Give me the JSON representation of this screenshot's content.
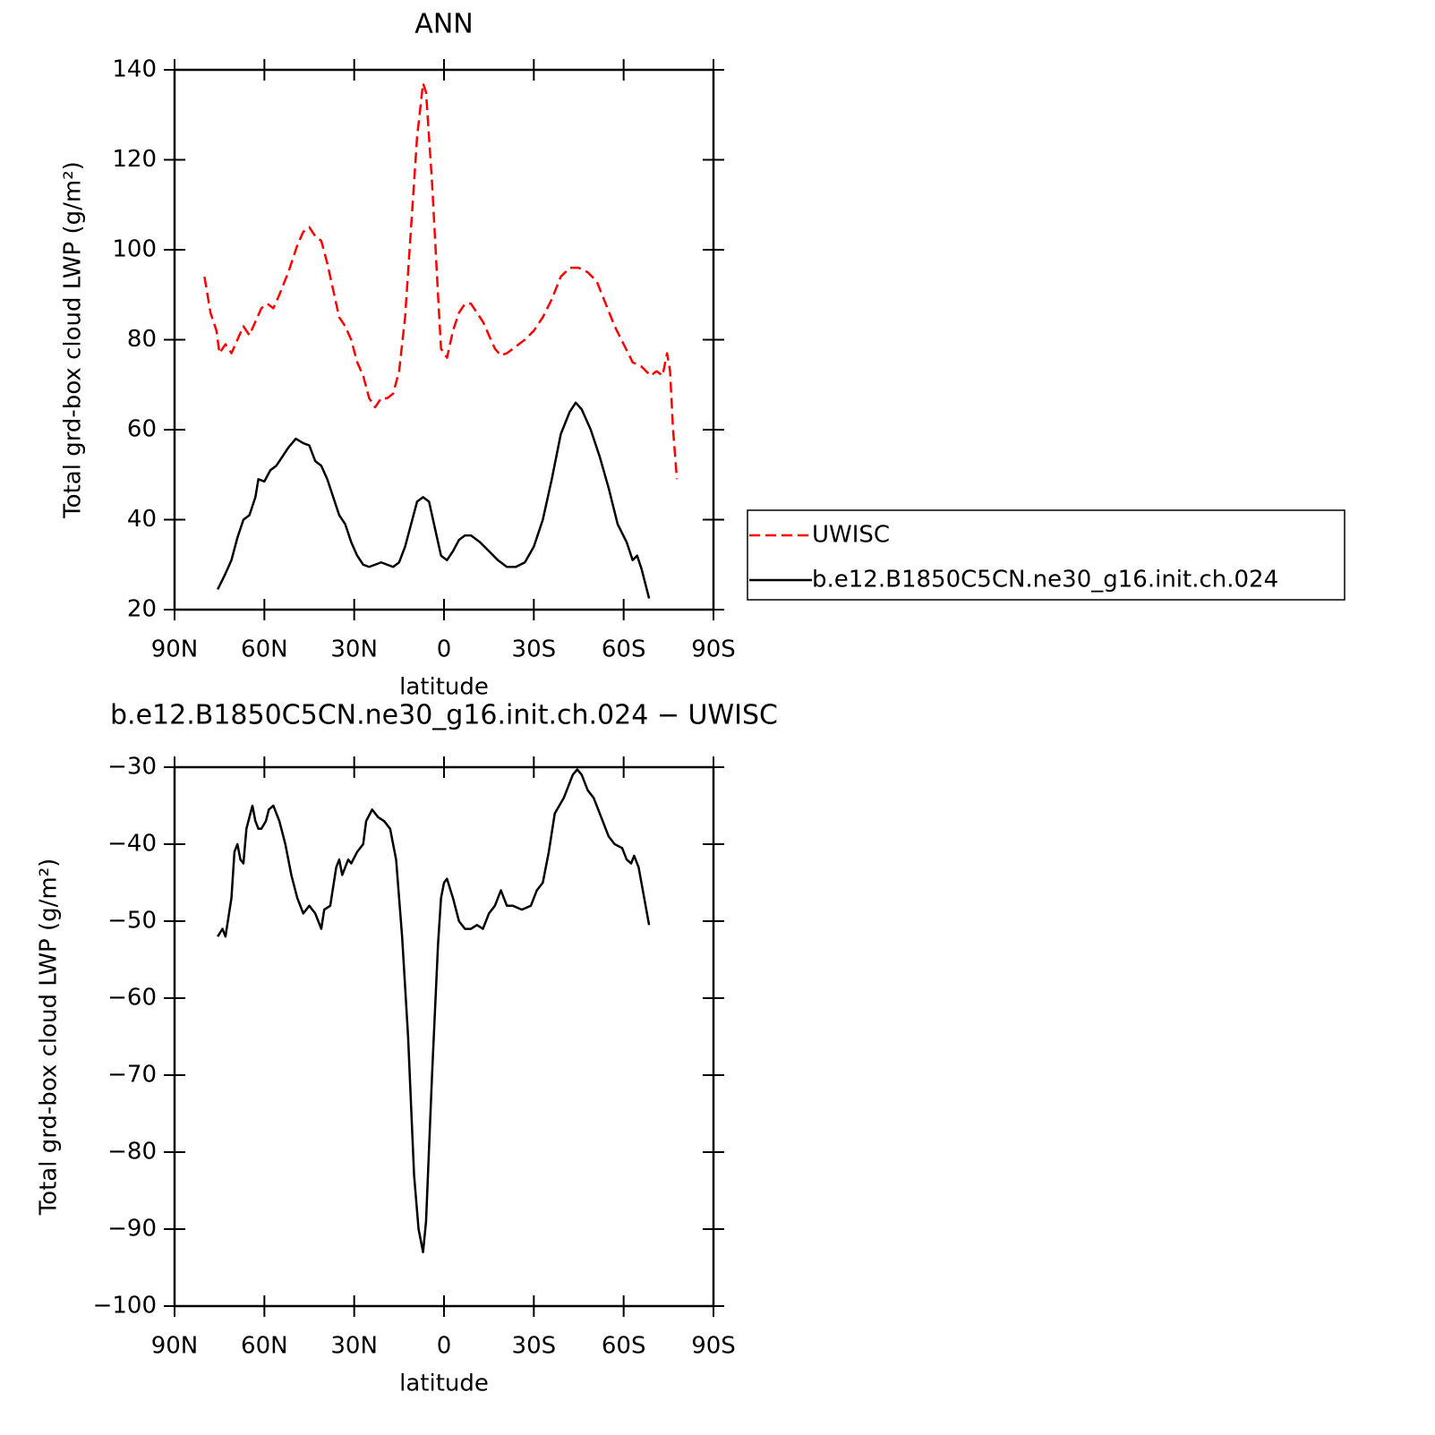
{
  "chart_data": [
    {
      "type": "line",
      "title": "ANN",
      "xlabel": "latitude",
      "ylabel": "Total grd-box cloud LWP (g/m²)",
      "xlim": [
        90,
        -90
      ],
      "xticks": [
        {
          "value": 90,
          "label": "90N"
        },
        {
          "value": 60,
          "label": "60N"
        },
        {
          "value": 30,
          "label": "30N"
        },
        0,
        {
          "value": -30,
          "label": "30S"
        },
        {
          "value": -60,
          "label": "60S"
        },
        {
          "value": -90,
          "label": "90S"
        }
      ],
      "ylim": [
        20,
        140
      ],
      "yticks": [
        20,
        40,
        60,
        80,
        100,
        120,
        140
      ],
      "legend": "right",
      "series": [
        {
          "name": "UWISC",
          "color": "#ff0000",
          "dash": true,
          "x": [
            80,
            78,
            76,
            75,
            73,
            71,
            69,
            67,
            65,
            63,
            61,
            59,
            57,
            55,
            52,
            49,
            47,
            45,
            43,
            41,
            39,
            37,
            35,
            33,
            31,
            29,
            27,
            25,
            23,
            21,
            19,
            17,
            15,
            13,
            11,
            9,
            7,
            6,
            4,
            2,
            1,
            -1,
            -3,
            -5,
            -7,
            -9,
            -11,
            -13,
            -15,
            -17,
            -19,
            -21,
            -23,
            -25,
            -27,
            -30,
            -33,
            -36,
            -39,
            -42,
            -45,
            -48,
            -51,
            -54,
            -57,
            -60,
            -63,
            -66,
            -69,
            -71,
            -73,
            -74.5,
            -75.5,
            -76.5,
            -77.8
          ],
          "values": [
            94,
            86,
            82,
            77,
            79,
            77,
            80,
            83,
            81,
            84,
            87,
            88,
            87,
            90,
            95,
            101,
            104,
            105,
            103,
            102,
            97,
            91,
            85,
            83,
            80,
            75,
            72,
            67,
            65,
            67,
            67,
            68,
            73,
            85,
            105,
            125,
            137,
            135,
            115,
            90,
            78,
            76,
            82,
            86,
            88,
            88,
            86,
            84,
            81,
            78,
            76.5,
            77,
            78,
            79,
            80,
            82,
            85,
            89,
            94,
            96,
            96,
            95,
            93,
            88,
            83,
            79,
            75,
            74,
            72,
            73,
            72,
            77,
            73,
            60,
            49
          ]
        },
        {
          "name": "b.e12.B1850C5CN.ne30_g16.init.ch.024",
          "color": "#000000",
          "dash": false,
          "x": [
            75.6,
            73,
            71,
            69,
            67,
            65,
            63,
            62,
            60,
            58,
            56,
            54,
            52,
            49.5,
            47,
            45,
            43,
            41,
            39,
            37,
            35,
            33,
            31,
            29,
            27,
            25,
            23,
            21,
            19,
            17,
            15,
            13,
            11,
            9,
            7,
            5,
            3,
            1,
            -1,
            -3,
            -5,
            -7,
            -9,
            -12,
            -15,
            -18,
            -21,
            -24,
            -27,
            -30,
            -33,
            -36,
            -39,
            -42,
            -44,
            -46,
            -49,
            -52,
            -55,
            -58,
            -61,
            -63,
            -64.5,
            -66,
            -68.5
          ],
          "values": [
            24.5,
            28,
            31,
            36,
            40,
            41,
            45,
            49,
            48.5,
            51,
            52,
            54,
            56,
            58,
            57,
            56.5,
            53,
            52,
            49,
            45,
            41,
            39,
            35,
            32,
            30,
            29.5,
            30,
            30.5,
            30,
            29.5,
            30.5,
            34,
            39,
            44,
            45,
            44,
            38,
            32,
            31,
            33,
            35.5,
            36.5,
            36.5,
            35,
            33,
            31,
            29.5,
            29.5,
            30.5,
            34,
            40,
            49,
            59,
            64,
            66,
            64.5,
            60,
            54,
            47,
            39,
            35,
            31,
            32,
            29,
            22.5
          ]
        }
      ]
    },
    {
      "type": "line",
      "title": "b.e12.B1850C5CN.ne30_g16.init.ch.024 − UWISC",
      "xlabel": "latitude",
      "ylabel": "Total grd-box cloud LWP (g/m²)",
      "xlim": [
        90,
        -90
      ],
      "xticks": [
        {
          "value": 90,
          "label": "90N"
        },
        {
          "value": 60,
          "label": "60N"
        },
        {
          "value": 30,
          "label": "30N"
        },
        0,
        {
          "value": -30,
          "label": "30S"
        },
        {
          "value": -60,
          "label": "60S"
        },
        {
          "value": -90,
          "label": "90S"
        }
      ],
      "ylim": [
        -100,
        -30
      ],
      "yticks": [
        {
          "value": -100,
          "label": "−100"
        },
        {
          "value": -90,
          "label": "−90"
        },
        {
          "value": -80,
          "label": "−80"
        },
        {
          "value": -70,
          "label": "−70"
        },
        {
          "value": -60,
          "label": "−60"
        },
        {
          "value": -50,
          "label": "−50"
        },
        {
          "value": -40,
          "label": "−40"
        },
        {
          "value": -30,
          "label": "−30"
        }
      ],
      "series": [
        {
          "color": "#000000",
          "dash": false,
          "x": [
            75.6,
            74,
            73,
            71,
            70,
            69,
            68,
            67,
            66,
            64,
            63,
            62,
            61,
            59.5,
            58.5,
            57,
            55,
            53,
            51,
            49,
            47,
            45,
            43,
            42,
            41,
            40,
            38,
            36,
            35,
            34,
            32,
            31,
            29,
            27,
            26,
            24,
            22,
            20,
            18,
            16,
            14,
            12,
            10,
            8.5,
            7,
            6,
            4,
            2,
            1,
            0,
            -1,
            -3,
            -5,
            -7,
            -9,
            -11,
            -13,
            -15,
            -17,
            -19,
            -21,
            -23,
            -26,
            -29,
            -31,
            -33,
            -35,
            -37,
            -40,
            -43,
            -44.5,
            -46,
            -48,
            -50,
            -52,
            -55,
            -57,
            -59.5,
            -61,
            -62.5,
            -63.5,
            -65,
            -68.5
          ],
          "values": [
            -52,
            -51,
            -52,
            -47,
            -41,
            -40,
            -42,
            -42.5,
            -38,
            -35,
            -37,
            -38,
            -38,
            -37,
            -35.5,
            -35,
            -37,
            -40,
            -44,
            -47,
            -49,
            -48,
            -49,
            -50,
            -51,
            -48.5,
            -48,
            -43,
            -42,
            -44,
            -42,
            -42.5,
            -41,
            -40,
            -37,
            -35.5,
            -36.5,
            -37,
            -38,
            -42,
            -52,
            -65,
            -83,
            -90,
            -93,
            -89,
            -70,
            -53,
            -47,
            -45,
            -44.5,
            -47,
            -50,
            -51,
            -51,
            -50.5,
            -51,
            -49,
            -48,
            -46,
            -48,
            -48,
            -48.5,
            -48,
            -46,
            -45,
            -41,
            -36,
            -34,
            -31,
            -30.3,
            -31,
            -33,
            -34,
            -36,
            -39,
            -40,
            -40.5,
            -42,
            -42.5,
            -41.5,
            -43,
            -50.5
          ]
        }
      ]
    }
  ]
}
